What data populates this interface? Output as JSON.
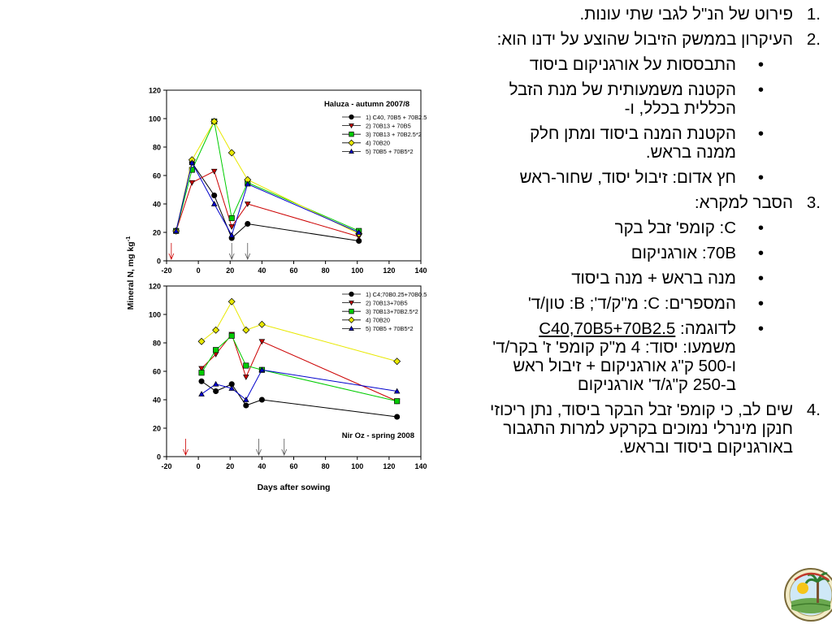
{
  "text": {
    "item1": {
      "marker": "1.",
      "text": "פירוט של הנ\"ל לגבי שתי עונות."
    },
    "item2": {
      "marker": "2.",
      "text": "העיקרון בממשק הזיבול שהוצע על ידנו הוא:",
      "bullets": [
        "התבססות על אורגניקום ביסוד",
        "הקטנה משמעותית של מנת הזבל הכללית בכלל, ו-",
        "הקטנת המנה ביסוד ומתן חלק ממנה בראש.",
        "חץ אדום: זיבול יסוד, שחור-ראש"
      ]
    },
    "item3": {
      "marker": "3.",
      "text": "הסבר למקרא:",
      "bullets": [
        "C: קומפ' זבל בקר",
        "70B: אורגניקום",
        "מנה בראש + מנה ביסוד",
        "המספרים: C: מ\"ק/ד'; B: טון/ד'"
      ],
      "example": {
        "prefix": "לדוגמה: ",
        "code": "C40,70B5+70B2.5",
        "explanation": "משמעו: יסוד: 4 מ\"ק קומפ' ז' בקר/ד' ו-500 ק\"ג אורגניקום + זיבול ראש ב-250 ק\"ג/ד' אורגניקום"
      }
    },
    "item4": {
      "marker": "4.",
      "text": "שים לב, כי קומפ' זבל הבקר ביסוד, נתן ריכוזי חנקן מינרלי נמוכים בקרקע למרות התגבור באורגניקום ביסוד ובראש."
    }
  },
  "bullet_symbol": "•",
  "chart_data": [
    {
      "type": "line",
      "title": "Haluza - autumn 2007/8",
      "xlabel": "Days after sowing",
      "ylabel": "Mineral N, mg kg-1",
      "xlim": [
        -20,
        140
      ],
      "ylim": [
        0,
        120
      ],
      "xticks": [
        -20,
        0,
        20,
        40,
        60,
        80,
        100,
        120,
        140
      ],
      "yticks": [
        0,
        20,
        40,
        60,
        80,
        100,
        120
      ],
      "grid": false,
      "legend_position": "top-right",
      "series": [
        {
          "name": "1) C40, 70B5 + 70B2.5",
          "color": "#000000",
          "marker": "circle",
          "x": [
            -14,
            -4,
            10,
            21,
            31,
            101
          ],
          "y": [
            21,
            69,
            46,
            16,
            26,
            14
          ]
        },
        {
          "name": "2) 70B13 + 70B5",
          "color": "#cc0000",
          "marker": "triangle-down",
          "x": [
            -14,
            -4,
            10,
            21,
            31,
            101
          ],
          "y": [
            21,
            55,
            63,
            24,
            40,
            17
          ]
        },
        {
          "name": "3) 70B13 + 70B2.5*2",
          "color": "#00cc00",
          "marker": "square",
          "x": [
            -14,
            -4,
            10,
            21,
            31,
            101
          ],
          "y": [
            21,
            64,
            98,
            30,
            55,
            21
          ]
        },
        {
          "name": "4) 70B20",
          "color": "#e8e800",
          "marker": "diamond",
          "x": [
            -14,
            -4,
            10,
            21,
            31,
            101
          ],
          "y": [
            21,
            71,
            98,
            76,
            57,
            19
          ]
        },
        {
          "name": "5) 70B5 + 70B5*2",
          "color": "#0000cc",
          "marker": "triangle-up",
          "x": [
            -14,
            -4,
            10,
            21,
            31,
            101
          ],
          "y": [
            21,
            69,
            40,
            18,
            54,
            20
          ]
        }
      ],
      "fertilization_arrows": [
        {
          "x": -17,
          "color": "#cc0000"
        },
        {
          "x": 21,
          "color": "#555555"
        },
        {
          "x": 31,
          "color": "#555555"
        }
      ]
    },
    {
      "type": "line",
      "title": "Nir Oz - spring 2008",
      "xlabel": "Days after sowing",
      "ylabel": "Mineral N, mg kg-1",
      "xlim": [
        -20,
        140
      ],
      "ylim": [
        0,
        120
      ],
      "xticks": [
        -20,
        0,
        20,
        40,
        60,
        80,
        100,
        120,
        140
      ],
      "yticks": [
        0,
        20,
        40,
        60,
        80,
        100,
        120
      ],
      "grid": false,
      "legend_position": "top-right",
      "series": [
        {
          "name": "1) C4;70B0.25+70B0.5",
          "color": "#000000",
          "marker": "circle",
          "x": [
            2,
            11,
            21,
            30,
            40,
            125
          ],
          "y": [
            53,
            46,
            51,
            36,
            40,
            28
          ]
        },
        {
          "name": "2) 70B13+70B5",
          "color": "#cc0000",
          "marker": "triangle-down",
          "x": [
            2,
            11,
            21,
            30,
            40,
            125
          ],
          "y": [
            62,
            72,
            86,
            56,
            81,
            39
          ]
        },
        {
          "name": "3) 70B13+70B2.5*2",
          "color": "#00cc00",
          "marker": "square",
          "x": [
            2,
            11,
            21,
            30,
            40,
            125
          ],
          "y": [
            59,
            75,
            85,
            64,
            61,
            39
          ]
        },
        {
          "name": "4) 70B20",
          "color": "#e8e800",
          "marker": "diamond",
          "x": [
            2,
            11,
            21,
            30,
            40,
            125
          ],
          "y": [
            81,
            89,
            109,
            89,
            93,
            67
          ]
        },
        {
          "name": "5) 70B5 + 70B5*2",
          "color": "#0000cc",
          "marker": "triangle-up",
          "x": [
            2,
            11,
            21,
            30,
            40,
            125
          ],
          "y": [
            44,
            51,
            48,
            40,
            61,
            46
          ]
        }
      ],
      "fertilization_arrows": [
        {
          "x": -8,
          "color": "#cc0000"
        },
        {
          "x": 38,
          "color": "#555555"
        },
        {
          "x": 54,
          "color": "#555555"
        }
      ]
    }
  ]
}
